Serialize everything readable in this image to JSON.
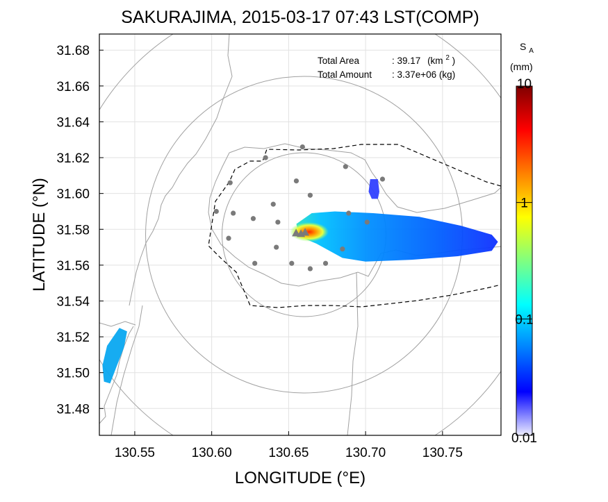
{
  "chart_data": {
    "type": "heatmap",
    "title": "SAKURAJIMA, 2015-03-17 07:43 LST(COMP)",
    "xlabel": "LONGITUDE (°E)",
    "ylabel": "LATITUDE (°N)",
    "xlim": [
      130.527,
      130.788
    ],
    "ylim": [
      31.465,
      31.689
    ],
    "xticks": [
      130.55,
      130.6,
      130.65,
      130.7,
      130.75
    ],
    "xtick_labels": [
      "130.55",
      "130.60",
      "130.65",
      "130.70",
      "130.75"
    ],
    "yticks": [
      31.48,
      31.5,
      31.52,
      31.54,
      31.56,
      31.58,
      31.6,
      31.62,
      31.64,
      31.66,
      31.68
    ],
    "ytick_labels": [
      "31.48",
      "31.50",
      "31.52",
      "31.54",
      "31.56",
      "31.58",
      "31.60",
      "31.62",
      "31.64",
      "31.66",
      "31.68"
    ],
    "grid": true,
    "info": {
      "area_label": "Total Area",
      "area_value": ": 39.17",
      "area_unit_open": "(km",
      "area_unit_sup": "2",
      "area_unit_close": ")",
      "amount_label": "Total Amount",
      "amount_value": ": 3.37e+06 (kg)"
    },
    "colorbar": {
      "label_main": "S",
      "label_sub": "A",
      "unit": "(mm)",
      "scale": "log",
      "range": [
        0.01,
        10
      ],
      "ticks": [
        10,
        1,
        0.1,
        0.01
      ],
      "tick_labels": [
        "10",
        "1",
        "0.1",
        "0.01"
      ],
      "colors": [
        "#eeeeff",
        "#0000ff",
        "#0080ff",
        "#00ffff",
        "#80ff80",
        "#ffff00",
        "#ff8000",
        "#ff0000",
        "#800000"
      ]
    },
    "vent": {
      "lon": 130.658,
      "lat": 31.578
    },
    "range_circles_center": {
      "lon": 130.66,
      "lat": 31.577
    },
    "stations": [
      {
        "lon": 130.659,
        "lat": 31.626
      },
      {
        "lon": 130.635,
        "lat": 31.62
      },
      {
        "lon": 130.687,
        "lat": 31.615
      },
      {
        "lon": 130.612,
        "lat": 31.606
      },
      {
        "lon": 130.655,
        "lat": 31.607
      },
      {
        "lon": 130.711,
        "lat": 31.608
      },
      {
        "lon": 130.664,
        "lat": 31.599
      },
      {
        "lon": 130.603,
        "lat": 31.59
      },
      {
        "lon": 130.614,
        "lat": 31.589
      },
      {
        "lon": 130.64,
        "lat": 31.594
      },
      {
        "lon": 130.627,
        "lat": 31.586
      },
      {
        "lon": 130.689,
        "lat": 31.589
      },
      {
        "lon": 130.643,
        "lat": 31.584
      },
      {
        "lon": 130.701,
        "lat": 31.584
      },
      {
        "lon": 130.611,
        "lat": 31.575
      },
      {
        "lon": 130.642,
        "lat": 31.57
      },
      {
        "lon": 130.685,
        "lat": 31.569
      },
      {
        "lon": 130.628,
        "lat": 31.561
      },
      {
        "lon": 130.652,
        "lat": 31.561
      },
      {
        "lon": 130.674,
        "lat": 31.561
      },
      {
        "lon": 130.664,
        "lat": 31.558
      }
    ],
    "plumes": [
      {
        "name": "main",
        "path": [
          [
            130.655,
            31.583
          ],
          [
            130.665,
            31.589
          ],
          [
            130.68,
            31.59
          ],
          [
            130.705,
            31.589
          ],
          [
            130.735,
            31.587
          ],
          [
            130.762,
            31.582
          ],
          [
            130.782,
            31.577
          ],
          [
            130.786,
            31.573
          ],
          [
            130.782,
            31.568
          ],
          [
            130.76,
            31.565
          ],
          [
            130.73,
            31.563
          ],
          [
            130.7,
            31.562
          ],
          [
            130.685,
            31.564
          ],
          [
            130.668,
            31.572
          ],
          [
            130.657,
            31.576
          ]
        ]
      },
      {
        "name": "south-west",
        "path": [
          [
            130.54,
            31.525
          ],
          [
            130.545,
            31.523
          ],
          [
            130.543,
            31.514
          ],
          [
            130.538,
            31.503
          ],
          [
            130.534,
            31.494
          ],
          [
            130.53,
            31.495
          ],
          [
            130.529,
            31.504
          ],
          [
            130.532,
            31.515
          ]
        ]
      },
      {
        "name": "north-east-spot",
        "path": [
          [
            130.703,
            31.608
          ],
          [
            130.708,
            31.608
          ],
          [
            130.709,
            31.601
          ],
          [
            130.708,
            31.597
          ],
          [
            130.704,
            31.597
          ],
          [
            130.702,
            31.601
          ]
        ]
      }
    ]
  }
}
